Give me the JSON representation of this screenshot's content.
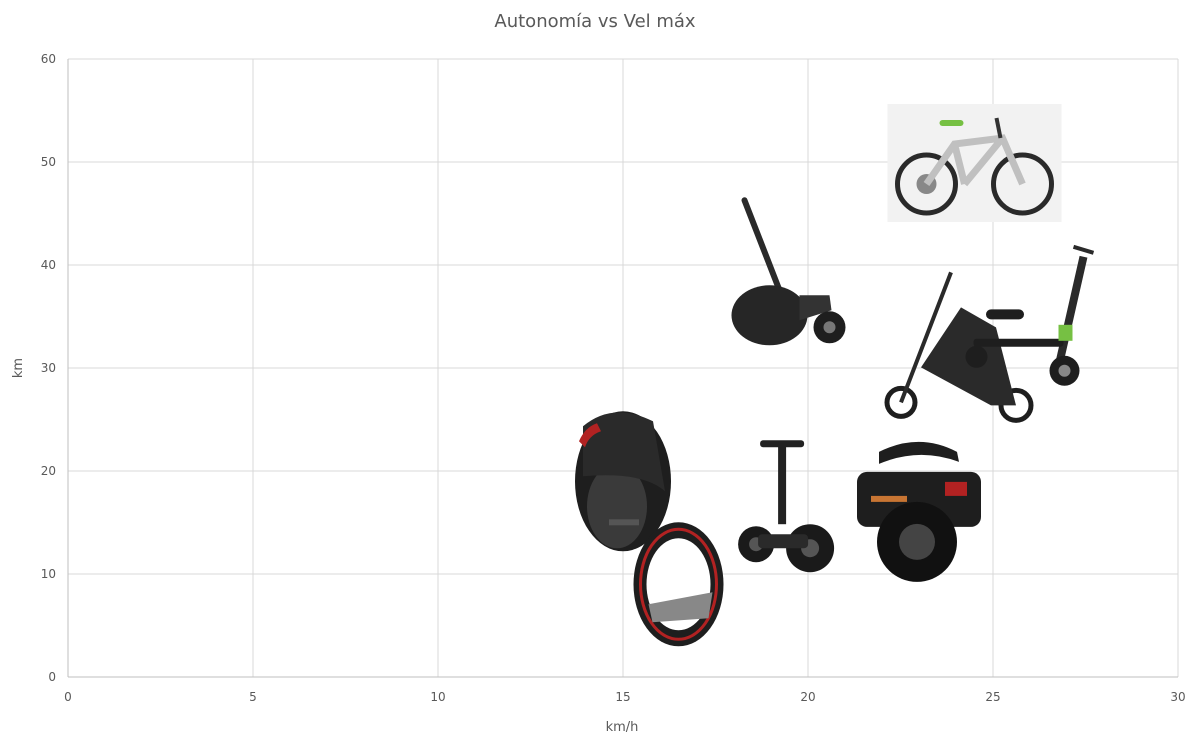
{
  "chart_data": {
    "type": "scatter",
    "title": "Autonomía vs Vel máx",
    "xlabel": "km/h",
    "ylabel": "km",
    "xlim": [
      0,
      30
    ],
    "ylim": [
      0,
      60
    ],
    "x_ticks": [
      0,
      5,
      10,
      15,
      20,
      25,
      30
    ],
    "y_ticks": [
      0,
      10,
      20,
      30,
      40,
      50,
      60
    ],
    "grid": true,
    "legend": "none",
    "points": [
      {
        "icon": "monowheel-icon",
        "x": 15,
        "y": 19
      },
      {
        "icon": "hoop-wheel-icon",
        "x": 16.5,
        "y": 9
      },
      {
        "icon": "segway-icon",
        "x": 19.3,
        "y": 16
      },
      {
        "icon": "wheel-scooter-icon",
        "x": 19.5,
        "y": 39
      },
      {
        "icon": "seated-monowheel-icon",
        "x": 23,
        "y": 17
      },
      {
        "icon": "folding-bike-icon",
        "x": 24,
        "y": 32
      },
      {
        "icon": "kick-scooter-icon",
        "x": 26.5,
        "y": 34
      },
      {
        "icon": "ebike-icon",
        "x": 24.5,
        "y": 50
      }
    ],
    "colors": {
      "grid": "#d9d9d9",
      "text": "#595959",
      "dark": "#1e1e1e",
      "red": "#b22222",
      "green": "#76c043"
    }
  }
}
